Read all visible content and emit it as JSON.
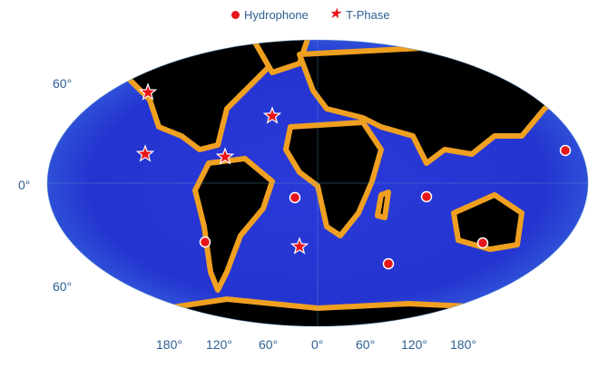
{
  "legend": {
    "hydrophone": {
      "label": "Hydrophone",
      "icon": "circle-marker",
      "color": "#e8141a"
    },
    "tphase": {
      "label": "T-Phase",
      "icon": "star-marker",
      "color": "#e8141a"
    }
  },
  "lat_labels": [
    "60°",
    "0°",
    "60°"
  ],
  "lon_labels": [
    "180°",
    "120°",
    "60°",
    "0°",
    "60°",
    "120°",
    "180°"
  ],
  "colors": {
    "deep_ocean": "#2a2fd8",
    "mid_ocean": "#1f78e8",
    "shallow": "#38d8c8",
    "shelf": "#f0a020",
    "land": "#000000"
  }
}
